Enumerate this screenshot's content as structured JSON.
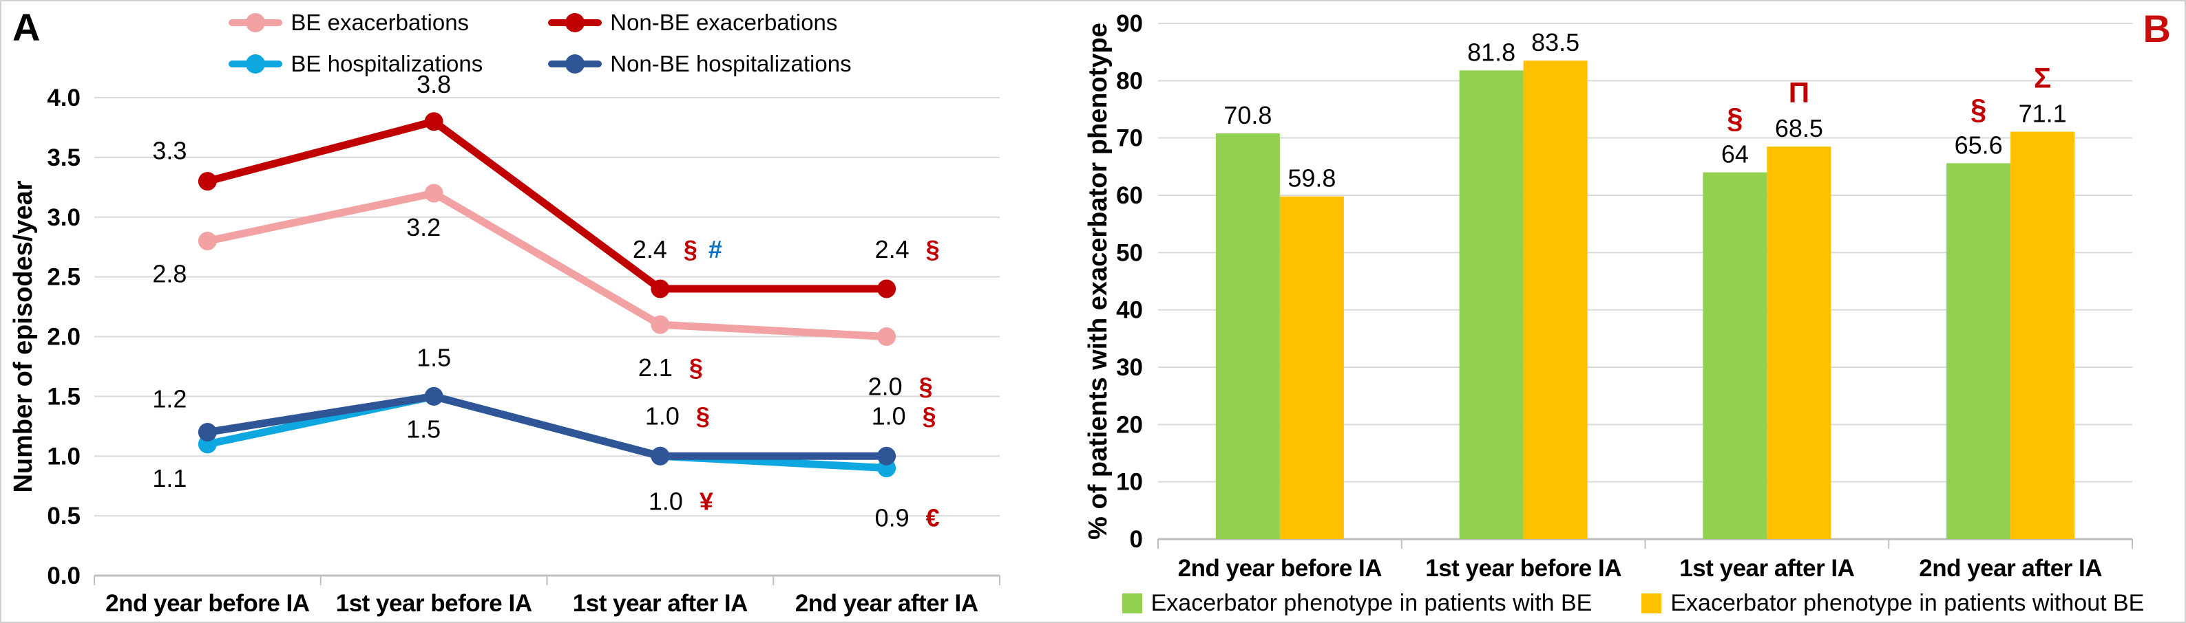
{
  "figure": {
    "panel_a_letter": "A",
    "panel_b_letter": "B",
    "panel_b_letter_color": "#C80D0D"
  },
  "colors": {
    "grid": "#D9D9D9",
    "axis": "#BFBFBF",
    "symbol_red": "#C00000",
    "symbol_blue": "#0070C0"
  },
  "chart_data": [
    {
      "id": "panel-a-episodes",
      "panel": "A",
      "type": "line",
      "title": "",
      "xlabel": "",
      "ylabel": "Number of episodes/year",
      "ylim": [
        0,
        4.0
      ],
      "ytick_step": 0.5,
      "ytick_decimals": 1,
      "grid": true,
      "legend_position": "top",
      "categories": [
        "2nd year before IA",
        "1st year before IA",
        "1st year after IA",
        "2nd year after IA"
      ],
      "series": [
        {
          "name": "BE exacerbations",
          "color": "#F2A2A2",
          "values": [
            2.8,
            3.2,
            2.1,
            2.0
          ],
          "point_labels": [
            {
              "text": "2.8",
              "dx": -55,
              "dy": 60,
              "symbols": []
            },
            {
              "text": "3.2",
              "dx": -15,
              "dy": 62,
              "symbols": []
            },
            {
              "text": "2.1",
              "dx": 15,
              "dy": 75,
              "symbols": [
                {
                  "char": "§",
                  "color": "#C00000"
                }
              ]
            },
            {
              "text": "2.0",
              "dx": 20,
              "dy": 85,
              "symbols": [
                {
                  "char": "§",
                  "color": "#C00000"
                }
              ]
            }
          ]
        },
        {
          "name": "Non-BE exacerbations",
          "color": "#C00000",
          "values": [
            3.3,
            3.8,
            2.4,
            2.4
          ],
          "point_labels": [
            {
              "text": "3.3",
              "dx": -55,
              "dy": -32,
              "symbols": []
            },
            {
              "text": "3.8",
              "dx": 0,
              "dy": -42,
              "symbols": []
            },
            {
              "text": "2.4",
              "dx": 25,
              "dy": -45,
              "symbols": [
                {
                  "char": "§",
                  "color": "#C00000"
                },
                {
                  "char": "#",
                  "color": "#0070C0"
                }
              ]
            },
            {
              "text": "2.4",
              "dx": 30,
              "dy": -45,
              "symbols": [
                {
                  "char": "§",
                  "color": "#C00000"
                }
              ]
            }
          ]
        },
        {
          "name": "BE hospitalizations",
          "color": "#0FA7E0",
          "values": [
            1.1,
            1.5,
            1.0,
            0.9
          ],
          "point_labels": [
            {
              "text": "1.1",
              "dx": -55,
              "dy": 62,
              "symbols": []
            },
            {
              "text": "1.5",
              "dx": -15,
              "dy": 60,
              "symbols": []
            },
            {
              "text": "1.0",
              "dx": 30,
              "dy": 78,
              "symbols": [
                {
                  "char": "¥",
                  "color": "#C00000"
                }
              ]
            },
            {
              "text": "0.9",
              "dx": 30,
              "dy": 85,
              "symbols": [
                {
                  "char": "€",
                  "color": "#C00000"
                }
              ]
            }
          ]
        },
        {
          "name": "Non-BE hospitalizations",
          "color": "#2F5597",
          "values": [
            1.2,
            1.5,
            1.0,
            1.0
          ],
          "point_labels": [
            {
              "text": "1.2",
              "dx": -55,
              "dy": -36,
              "symbols": []
            },
            {
              "text": "1.5",
              "dx": 0,
              "dy": -44,
              "symbols": []
            },
            {
              "text": "1.0",
              "dx": 25,
              "dy": -46,
              "symbols": [
                {
                  "char": "§",
                  "color": "#C00000"
                }
              ]
            },
            {
              "text": "1.0",
              "dx": 25,
              "dy": -46,
              "symbols": [
                {
                  "char": "§",
                  "color": "#C00000"
                }
              ]
            }
          ]
        }
      ]
    },
    {
      "id": "panel-b-phenotype",
      "panel": "B",
      "type": "bar",
      "title": "",
      "xlabel": "",
      "ylabel": "% of patients with exacerbator phenotype",
      "ylim": [
        0,
        90
      ],
      "ytick_step": 10,
      "ytick_decimals": 0,
      "grid": true,
      "legend_position": "bottom",
      "categories": [
        "2nd year before IA",
        "1st year before IA",
        "1st year after IA",
        "2nd year after IA"
      ],
      "series": [
        {
          "name": "Exacerbator phenotype in patients with BE",
          "color": "#92D050",
          "values": [
            70.8,
            81.8,
            64,
            65.6
          ],
          "bar_labels": [
            "70.8",
            "81.8",
            "64",
            "65.6"
          ],
          "symbols": [
            null,
            null,
            {
              "char": "§",
              "color": "#C00000"
            },
            {
              "char": "§",
              "color": "#C00000"
            }
          ]
        },
        {
          "name": "Exacerbator phenotype in patients without BE",
          "color": "#FFC000",
          "values": [
            59.8,
            83.5,
            68.5,
            71.1
          ],
          "bar_labels": [
            "59.8",
            "83.5",
            "68.5",
            "71.1"
          ],
          "symbols": [
            null,
            null,
            {
              "char": "Π",
              "color": "#C00000"
            },
            {
              "char": "Σ",
              "color": "#C00000"
            }
          ]
        }
      ]
    }
  ]
}
